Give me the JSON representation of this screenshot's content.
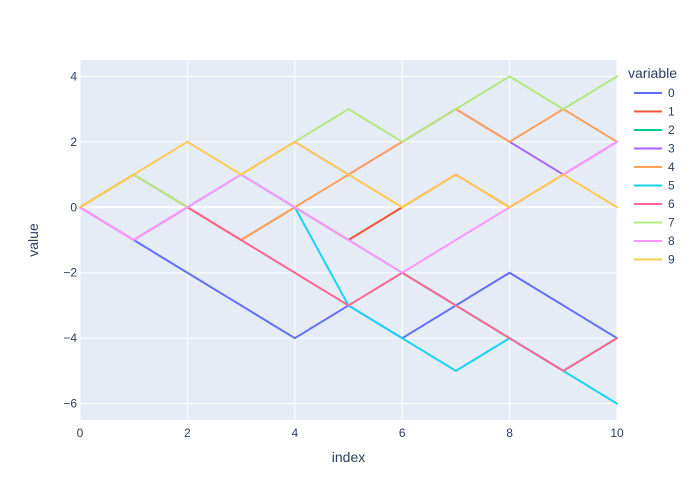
{
  "chart_data": {
    "type": "line",
    "xlabel": "index",
    "ylabel": "value",
    "xlim": [
      0,
      10
    ],
    "ylim": [
      -6.5,
      4.5
    ],
    "x_ticks": [
      0,
      2,
      4,
      6,
      8,
      10
    ],
    "y_ticks": [
      -6,
      -4,
      -2,
      0,
      2,
      4
    ],
    "y_tick_labels": [
      "−6",
      "−4",
      "−2",
      "0",
      "2",
      "4"
    ],
    "x": [
      0,
      1,
      2,
      3,
      4,
      5,
      6,
      7,
      8,
      9,
      10
    ],
    "grid": true,
    "plot_background": "#e5ecf6",
    "legend": {
      "title": "variable",
      "position": "right"
    },
    "series": [
      {
        "name": "0",
        "color": "#636efa",
        "values": [
          0,
          -1,
          -2,
          -3,
          -4,
          -3,
          -4,
          -3,
          -2,
          -3,
          -4
        ]
      },
      {
        "name": "1",
        "color": "#ef553b",
        "values": [
          0,
          1,
          0,
          -1,
          0,
          -1,
          0,
          1,
          0,
          1,
          2
        ]
      },
      {
        "name": "2",
        "color": "#00cc96",
        "values": [
          0,
          1,
          0,
          1,
          0,
          -1,
          -2,
          -3,
          -4,
          -5,
          -4
        ]
      },
      {
        "name": "3",
        "color": "#ab63fa",
        "values": [
          0,
          -1,
          0,
          1,
          2,
          1,
          2,
          3,
          2,
          1,
          2
        ]
      },
      {
        "name": "4",
        "color": "#ffa15a",
        "values": [
          0,
          1,
          0,
          -1,
          0,
          1,
          2,
          3,
          2,
          3,
          2
        ]
      },
      {
        "name": "5",
        "color": "#19d3f3",
        "values": [
          0,
          -1,
          0,
          1,
          0,
          -3,
          -4,
          -5,
          -4,
          -5,
          -6
        ]
      },
      {
        "name": "6",
        "color": "#ff6692",
        "values": [
          0,
          -1,
          0,
          -1,
          -2,
          -3,
          -2,
          -3,
          -4,
          -5,
          -4
        ]
      },
      {
        "name": "7",
        "color": "#b6e880",
        "values": [
          0,
          1,
          0,
          1,
          2,
          3,
          2,
          3,
          4,
          3,
          4
        ]
      },
      {
        "name": "8",
        "color": "#ff97ff",
        "values": [
          0,
          -1,
          0,
          1,
          0,
          -1,
          -2,
          -1,
          0,
          1,
          2
        ]
      },
      {
        "name": "9",
        "color": "#fecb52",
        "values": [
          0,
          1,
          2,
          1,
          2,
          1,
          0,
          1,
          0,
          1,
          0
        ]
      }
    ]
  }
}
